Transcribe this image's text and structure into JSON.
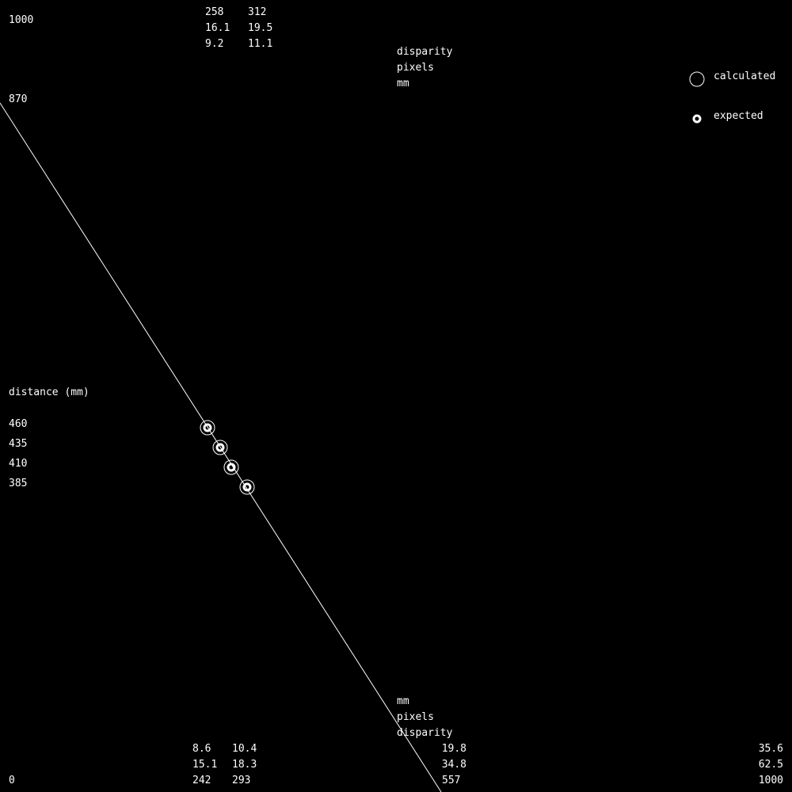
{
  "chart_data": {
    "type": "scatter",
    "xlabel": [
      "disparity",
      "pixels",
      "mm"
    ],
    "xlabel_bottom": [
      "mm",
      "pixels",
      "disparity"
    ],
    "ylabel": "distance (mm)",
    "xlim": [
      0,
      1000
    ],
    "ylim": [
      0,
      1000
    ],
    "grid": false,
    "legend_position": "top-right",
    "color": "#ffffff",
    "y_ticks": [
      "1000",
      "870",
      "460",
      "435",
      "410",
      "385",
      "0"
    ],
    "top_ticks": [
      {
        "disparity": "258",
        "pixels": "16.1",
        "mm": "9.2"
      },
      {
        "disparity": "312",
        "pixels": "19.5",
        "mm": "11.1"
      }
    ],
    "bottom_ticks": [
      {
        "mm": "8.6",
        "pixels": "15.1",
        "disparity": "242"
      },
      {
        "mm": "10.4",
        "pixels": "18.3",
        "disparity": "293"
      },
      {
        "mm": "19.8",
        "pixels": "34.8",
        "disparity": "557"
      },
      {
        "mm": "35.6",
        "pixels": "62.5",
        "disparity": "1000"
      }
    ],
    "fit_line": {
      "x": [
        0,
        557
      ],
      "y": [
        870,
        0
      ]
    },
    "series": [
      {
        "name": "calculated",
        "marker": "open-circle",
        "x": [
          262,
          278,
          292,
          312
        ],
        "y": [
          460,
          435,
          410,
          385
        ]
      },
      {
        "name": "expected",
        "marker": "thick-ring",
        "x": [
          262,
          278,
          292,
          312
        ],
        "y": [
          460,
          435,
          410,
          385
        ]
      }
    ]
  }
}
